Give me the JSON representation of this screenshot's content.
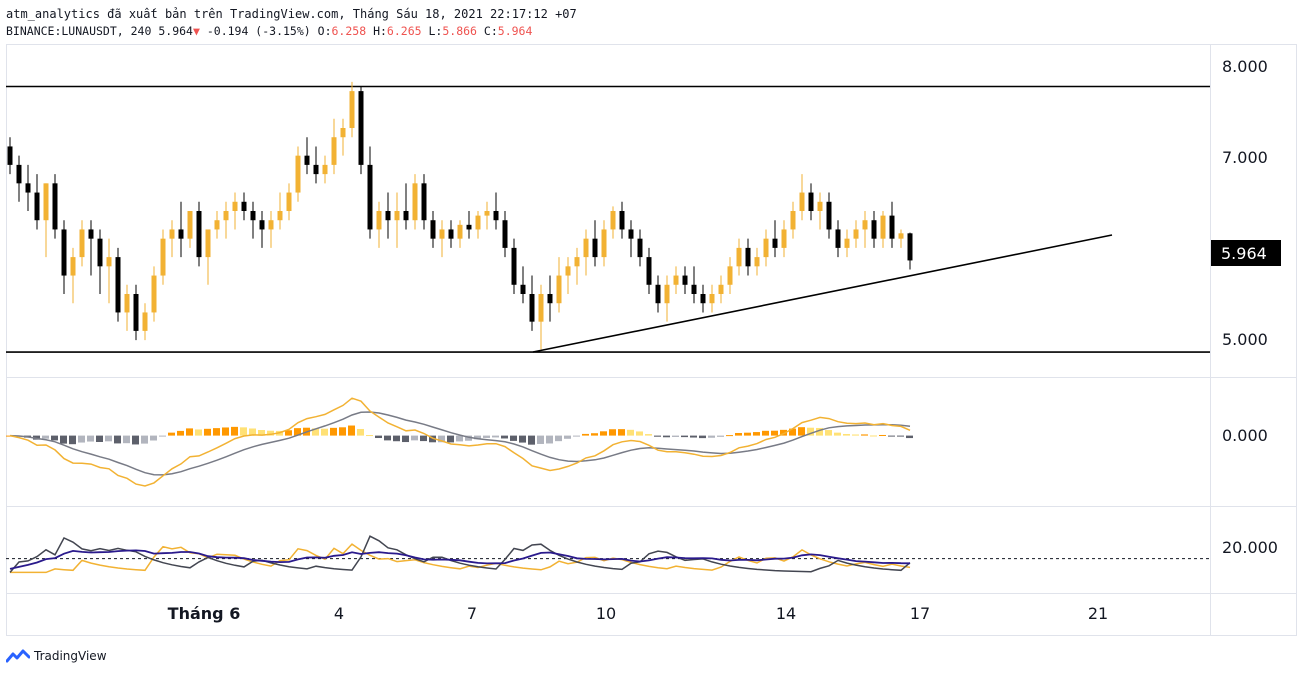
{
  "header": {
    "line1": "atm_analytics đã xuất bản trên TradingView.com, Tháng Sáu 18, 2021 22:17:12 +07",
    "symbol": "BINANCE:LUNAUSDT, 240",
    "last": "5.964",
    "arrow": "▼",
    "change": "-0.194 (-3.15%)",
    "o_label": "O:",
    "o_val": "6.258",
    "h_label": "H:",
    "h_val": "6.265",
    "l_label": "L:",
    "l_val": "5.866",
    "c_label": "C:",
    "c_val": "5.964"
  },
  "footer": {
    "logo_text": "TradingView"
  },
  "colors": {
    "bull": "#f2b233",
    "bear": "#000000",
    "macd_line": "#f2b233",
    "signal_line": "#787b86",
    "hist_pos_strong": "#ff9800",
    "hist_pos_weak": "#ffe176",
    "hist_neg_strong": "#5d606b",
    "hist_neg_weak": "#b2b5be",
    "osc_orange": "#f2b233",
    "osc_gray": "#434651",
    "osc_blue": "#2a1a8c"
  },
  "chart_data": [
    {
      "type": "candlestick",
      "panel": "price",
      "price_axis_ticks": [
        "8.000",
        "7.000",
        "5.000"
      ],
      "last_price_label": "5.964",
      "ylim": [
        4.7,
        8.3
      ],
      "horizontal_levels": [
        7.85,
        4.97
      ],
      "trendline": {
        "from": [
          "Jun 8",
          4.87
        ],
        "to": [
          "Jun 21",
          6.1
        ]
      },
      "time_axis_ticks": [
        "Tháng 6",
        "4",
        "7",
        "10",
        "14",
        "17",
        "21"
      ],
      "candles_ohlc": [
        [
          7.2,
          7.3,
          6.9,
          7.0
        ],
        [
          7.0,
          7.1,
          6.6,
          6.8
        ],
        [
          6.8,
          7.0,
          6.5,
          6.7
        ],
        [
          6.7,
          6.9,
          6.3,
          6.4
        ],
        [
          6.4,
          6.8,
          6.0,
          6.8
        ],
        [
          6.8,
          6.9,
          6.2,
          6.3
        ],
        [
          6.3,
          6.4,
          5.6,
          5.8
        ],
        [
          5.8,
          6.1,
          5.5,
          6.0
        ],
        [
          6.0,
          6.4,
          5.9,
          6.3
        ],
        [
          6.3,
          6.4,
          5.8,
          6.2
        ],
        [
          6.2,
          6.3,
          5.6,
          5.9
        ],
        [
          5.9,
          6.2,
          5.5,
          6.0
        ],
        [
          6.0,
          6.1,
          5.3,
          5.4
        ],
        [
          5.4,
          5.7,
          5.2,
          5.6
        ],
        [
          5.6,
          5.7,
          5.1,
          5.2
        ],
        [
          5.2,
          5.5,
          5.1,
          5.4
        ],
        [
          5.4,
          5.9,
          5.3,
          5.8
        ],
        [
          5.8,
          6.3,
          5.7,
          6.2
        ],
        [
          6.2,
          6.4,
          6.0,
          6.3
        ],
        [
          6.3,
          6.6,
          6.0,
          6.2
        ],
        [
          6.2,
          6.5,
          6.1,
          6.5
        ],
        [
          6.5,
          6.6,
          5.9,
          6.0
        ],
        [
          6.0,
          6.3,
          5.7,
          6.3
        ],
        [
          6.3,
          6.5,
          6.2,
          6.4
        ],
        [
          6.4,
          6.6,
          6.2,
          6.5
        ],
        [
          6.5,
          6.7,
          6.3,
          6.6
        ],
        [
          6.6,
          6.7,
          6.4,
          6.5
        ],
        [
          6.5,
          6.6,
          6.2,
          6.4
        ],
        [
          6.4,
          6.5,
          6.1,
          6.3
        ],
        [
          6.3,
          6.5,
          6.1,
          6.4
        ],
        [
          6.4,
          6.7,
          6.3,
          6.5
        ],
        [
          6.5,
          6.8,
          6.4,
          6.7
        ],
        [
          6.7,
          7.2,
          6.6,
          7.1
        ],
        [
          7.1,
          7.3,
          6.9,
          7.0
        ],
        [
          7.0,
          7.2,
          6.8,
          6.9
        ],
        [
          6.9,
          7.1,
          6.8,
          7.0
        ],
        [
          7.0,
          7.5,
          6.9,
          7.3
        ],
        [
          7.3,
          7.5,
          7.1,
          7.4
        ],
        [
          7.4,
          7.9,
          7.3,
          7.8
        ],
        [
          7.8,
          7.85,
          6.9,
          7.0
        ],
        [
          7.0,
          7.2,
          6.2,
          6.3
        ],
        [
          6.3,
          6.6,
          6.1,
          6.5
        ],
        [
          6.5,
          6.7,
          6.2,
          6.4
        ],
        [
          6.4,
          6.7,
          6.1,
          6.5
        ],
        [
          6.5,
          6.8,
          6.3,
          6.4
        ],
        [
          6.4,
          6.9,
          6.3,
          6.8
        ],
        [
          6.8,
          6.9,
          6.3,
          6.4
        ],
        [
          6.4,
          6.5,
          6.1,
          6.2
        ],
        [
          6.2,
          6.4,
          6.0,
          6.3
        ],
        [
          6.3,
          6.4,
          6.1,
          6.2
        ],
        [
          6.2,
          6.4,
          6.1,
          6.35
        ],
        [
          6.35,
          6.5,
          6.2,
          6.3
        ],
        [
          6.3,
          6.5,
          6.2,
          6.45
        ],
        [
          6.45,
          6.6,
          6.3,
          6.5
        ],
        [
          6.5,
          6.7,
          6.3,
          6.4
        ],
        [
          6.4,
          6.5,
          6.0,
          6.1
        ],
        [
          6.1,
          6.2,
          5.6,
          5.7
        ],
        [
          5.7,
          5.9,
          5.5,
          5.6
        ],
        [
          5.6,
          5.8,
          5.2,
          5.3
        ],
        [
          5.3,
          5.7,
          5.0,
          5.6
        ],
        [
          5.6,
          5.8,
          5.3,
          5.5
        ],
        [
          5.5,
          6.0,
          5.4,
          5.8
        ],
        [
          5.8,
          6.0,
          5.6,
          5.9
        ],
        [
          5.9,
          6.1,
          5.7,
          6.0
        ],
        [
          6.0,
          6.3,
          5.8,
          6.2
        ],
        [
          6.2,
          6.4,
          5.9,
          6.0
        ],
        [
          6.0,
          6.4,
          5.9,
          6.3
        ],
        [
          6.3,
          6.55,
          6.2,
          6.5
        ],
        [
          6.5,
          6.6,
          6.2,
          6.3
        ],
        [
          6.3,
          6.4,
          6.0,
          6.2
        ],
        [
          6.2,
          6.3,
          5.9,
          6.0
        ],
        [
          6.0,
          6.1,
          5.6,
          5.7
        ],
        [
          5.7,
          5.8,
          5.4,
          5.5
        ],
        [
          5.5,
          5.8,
          5.3,
          5.7
        ],
        [
          5.7,
          5.9,
          5.6,
          5.8
        ],
        [
          5.8,
          5.9,
          5.6,
          5.7
        ],
        [
          5.7,
          5.9,
          5.5,
          5.6
        ],
        [
          5.6,
          5.7,
          5.4,
          5.5
        ],
        [
          5.5,
          5.7,
          5.4,
          5.6
        ],
        [
          5.6,
          5.8,
          5.5,
          5.7
        ],
        [
          5.7,
          6.0,
          5.6,
          5.9
        ],
        [
          5.9,
          6.2,
          5.8,
          6.1
        ],
        [
          6.1,
          6.2,
          5.8,
          5.9
        ],
        [
          5.9,
          6.1,
          5.8,
          6.0
        ],
        [
          6.0,
          6.3,
          5.9,
          6.2
        ],
        [
          6.2,
          6.4,
          6.0,
          6.1
        ],
        [
          6.1,
          6.4,
          6.0,
          6.3
        ],
        [
          6.3,
          6.6,
          6.2,
          6.5
        ],
        [
          6.5,
          6.9,
          6.4,
          6.7
        ],
        [
          6.7,
          6.8,
          6.4,
          6.5
        ],
        [
          6.5,
          6.7,
          6.3,
          6.6
        ],
        [
          6.6,
          6.7,
          6.2,
          6.3
        ],
        [
          6.3,
          6.4,
          6.0,
          6.1
        ],
        [
          6.1,
          6.3,
          6.0,
          6.2
        ],
        [
          6.2,
          6.4,
          6.1,
          6.3
        ],
        [
          6.3,
          6.5,
          6.1,
          6.4
        ],
        [
          6.4,
          6.5,
          6.1,
          6.2
        ],
        [
          6.2,
          6.5,
          6.1,
          6.45
        ],
        [
          6.45,
          6.6,
          6.1,
          6.2
        ],
        [
          6.2,
          6.3,
          6.1,
          6.258
        ],
        [
          6.258,
          6.265,
          5.866,
          5.964
        ]
      ]
    },
    {
      "type": "macd",
      "panel": "macd",
      "axis_ticks": [
        "0.000"
      ],
      "ylim": [
        -0.55,
        0.45
      ]
    },
    {
      "type": "oscillator",
      "panel": "oscillator",
      "axis_ticks": [
        "20.000"
      ],
      "reference_level": 20,
      "ylim": [
        0,
        50
      ]
    }
  ]
}
